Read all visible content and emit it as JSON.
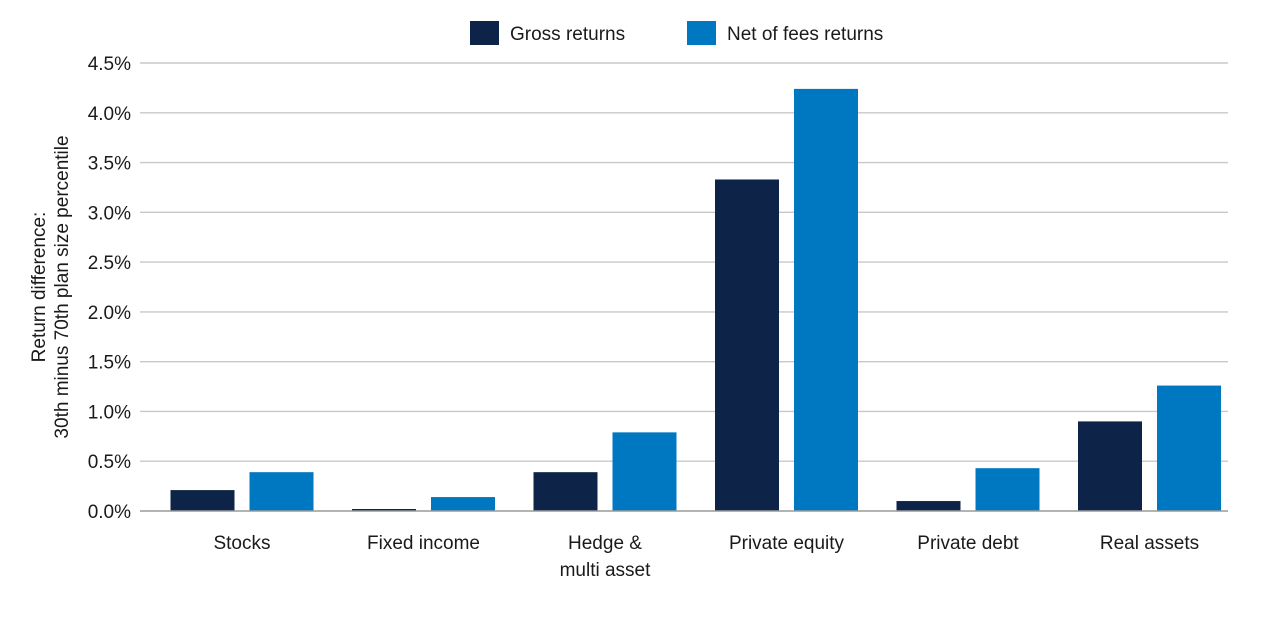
{
  "chart_data": {
    "type": "bar",
    "title": "",
    "xlabel": "",
    "ylabel": [
      "Return difference:",
      "30th minus 70th plan size percentile"
    ],
    "categories": [
      [
        "Stocks"
      ],
      [
        "Fixed income"
      ],
      [
        "Hedge &",
        "multi asset"
      ],
      [
        "Private equity"
      ],
      [
        "Private debt"
      ],
      [
        "Real assets"
      ]
    ],
    "series": [
      {
        "name": "Gross returns",
        "color": "#0d2347",
        "values": [
          0.21,
          0.02,
          0.39,
          3.33,
          0.1,
          0.9
        ]
      },
      {
        "name": "Net of fees returns",
        "color": "#0078c1",
        "values": [
          0.39,
          0.14,
          0.79,
          4.24,
          0.43,
          1.26
        ]
      }
    ],
    "ylim": [
      0,
      4.5
    ],
    "yticks": [
      0,
      0.5,
      1.0,
      1.5,
      2.0,
      2.5,
      3.0,
      3.5,
      4.0,
      4.5
    ],
    "ytick_labels": [
      "0.0%",
      "0.5%",
      "1.0%",
      "1.5%",
      "2.0%",
      "2.5%",
      "3.0%",
      "3.5%",
      "4.0%",
      "4.5%"
    ],
    "grid": true,
    "legend_position": "top-center"
  }
}
